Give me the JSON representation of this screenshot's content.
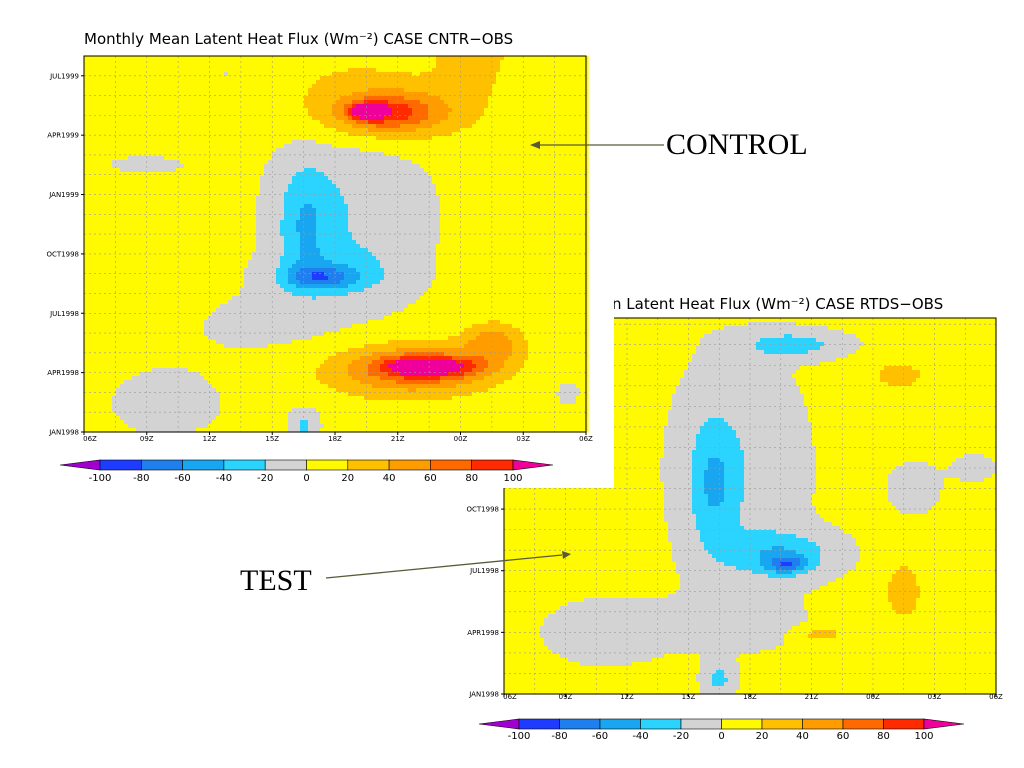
{
  "colors": {
    "frame": "#000000",
    "grid": "#9a9a9a",
    "arrow": "#5a5a3a"
  },
  "scale": {
    "levels": [
      -100,
      -80,
      -60,
      -40,
      -20,
      0,
      20,
      40,
      60,
      80,
      100
    ],
    "colors": [
      "#a000d0",
      "#1e3cff",
      "#1f7fee",
      "#18a6f0",
      "#2ad4ff",
      "#d3d3d3",
      "#fffa00",
      "#ffc000",
      "#ff9c00",
      "#ff6a00",
      "#ff2a00",
      "#f0009a"
    ],
    "tick_labels": [
      "-100",
      "-80",
      "-60",
      "-40",
      "-20",
      "0",
      "20",
      "40",
      "60",
      "80",
      "100"
    ]
  },
  "annotations": {
    "control": "CONTROL",
    "test": "TEST"
  },
  "chart_data": [
    {
      "type": "heatmap",
      "title": "Monthly Mean Latent Heat Flux (Wm⁻²) CASE CNTR−OBS",
      "x_label_values": [
        "06Z",
        "09Z",
        "12Z",
        "15Z",
        "18Z",
        "21Z",
        "00Z",
        "03Z",
        "06Z"
      ],
      "y_label_values": [
        "JAN1998",
        "APR1998",
        "JUL1998",
        "OCT1998",
        "JAN1999",
        "APR1999",
        "JUL1999"
      ],
      "x_hours": [
        0,
        3,
        6,
        9,
        12,
        15,
        18,
        21,
        24
      ],
      "y_months": [
        0,
        3,
        6,
        9,
        12,
        15,
        18
      ],
      "xlim": [
        0,
        24
      ],
      "ylim": [
        0,
        19
      ],
      "grid": true,
      "blobs": [
        {
          "x": 12.5,
          "y": 17.5,
          "rx": 5,
          "ry": 3.2,
          "v": 15
        },
        {
          "x": 18.5,
          "y": 20.0,
          "rx": 2.2,
          "ry": 3.5,
          "v": 35
        },
        {
          "x": 15.0,
          "y": 16.2,
          "rx": 4.8,
          "ry": 2.0,
          "v": 32
        },
        {
          "x": 14.5,
          "y": 16.1,
          "rx": 2.8,
          "ry": 1.1,
          "v": 55
        },
        {
          "x": 13.5,
          "y": 16.2,
          "rx": 1.0,
          "ry": 0.5,
          "v": 82
        },
        {
          "x": 12.8,
          "y": 11.0,
          "rx": 4.0,
          "ry": 5.5,
          "v": -22
        },
        {
          "x": 10.5,
          "y": 10.5,
          "rx": 1.6,
          "ry": 3.8,
          "v": -35
        },
        {
          "x": 12.0,
          "y": 8.0,
          "rx": 3.5,
          "ry": 1.6,
          "v": -20
        },
        {
          "x": 11.3,
          "y": 7.8,
          "rx": 2.2,
          "ry": 0.7,
          "v": -48
        },
        {
          "x": 15.0,
          "y": 3.0,
          "rx": 6.0,
          "ry": 2.2,
          "v": 25
        },
        {
          "x": 16.0,
          "y": 3.2,
          "rx": 4.2,
          "ry": 1.3,
          "v": 52
        },
        {
          "x": 16.5,
          "y": 3.3,
          "rx": 2.5,
          "ry": 0.6,
          "v": 80
        },
        {
          "x": 19.5,
          "y": 4.5,
          "rx": 1.8,
          "ry": 1.3,
          "v": 45
        },
        {
          "x": 4.0,
          "y": 1.5,
          "rx": 3.5,
          "ry": 2.2,
          "v": -10
        },
        {
          "x": 9.0,
          "y": 5.3,
          "rx": 5.0,
          "ry": 2.3,
          "v": -8
        },
        {
          "x": 3.0,
          "y": 13.5,
          "rx": 3.5,
          "ry": 0.8,
          "v": -6
        },
        {
          "x": 7.0,
          "y": 18.0,
          "rx": 1.8,
          "ry": 1.0,
          "v": -6
        },
        {
          "x": 10.5,
          "y": 0.4,
          "rx": 0.8,
          "ry": 1.0,
          "v": -30
        },
        {
          "x": 23.0,
          "y": 2.0,
          "rx": 1.0,
          "ry": 1.0,
          "v": -8
        }
      ]
    },
    {
      "type": "heatmap",
      "title": "n Latent Heat Flux (Wm⁻²) CASE RTDS−OBS",
      "x_label_values": [
        "06Z",
        "09Z",
        "12Z",
        "15Z",
        "18Z",
        "21Z",
        "00Z",
        "03Z",
        "06Z"
      ],
      "y_label_values": [
        "JAN1998",
        "APR1998",
        "JUL1998",
        "OCT1998"
      ],
      "x_hours": [
        0,
        3,
        6,
        9,
        12,
        15,
        18,
        21,
        24
      ],
      "y_months": [
        0,
        3,
        6,
        9
      ],
      "xlim": [
        0,
        24
      ],
      "ylim": [
        0,
        18.3
      ],
      "grid": true,
      "blobs": [
        {
          "x": 11.5,
          "y": 11.0,
          "rx": 3.8,
          "ry": 6.5,
          "v": -18
        },
        {
          "x": 10.2,
          "y": 10.2,
          "rx": 1.5,
          "ry": 4.0,
          "v": -35
        },
        {
          "x": 13.5,
          "y": 6.8,
          "rx": 3.2,
          "ry": 1.4,
          "v": -40
        },
        {
          "x": 13.8,
          "y": 6.3,
          "rx": 1.2,
          "ry": 0.5,
          "v": -52
        },
        {
          "x": 14.0,
          "y": 17.0,
          "rx": 3.0,
          "ry": 0.8,
          "v": -35
        },
        {
          "x": 5.0,
          "y": 3.0,
          "rx": 4.2,
          "ry": 2.2,
          "v": -10
        },
        {
          "x": 11.5,
          "y": 3.5,
          "rx": 4.0,
          "ry": 1.8,
          "v": -10
        },
        {
          "x": 10.5,
          "y": 0.7,
          "rx": 0.9,
          "ry": 1.0,
          "v": -30
        },
        {
          "x": 19.5,
          "y": 5.0,
          "rx": 1.1,
          "ry": 1.8,
          "v": 32
        },
        {
          "x": 19.3,
          "y": 15.5,
          "rx": 1.8,
          "ry": 1.0,
          "v": 25
        },
        {
          "x": 15.5,
          "y": 2.9,
          "rx": 1.4,
          "ry": 0.4,
          "v": 28
        },
        {
          "x": 20.0,
          "y": 10.0,
          "rx": 2.0,
          "ry": 2.0,
          "v": -8
        },
        {
          "x": 2.5,
          "y": 14.0,
          "rx": 2.5,
          "ry": 2.0,
          "v": -8
        },
        {
          "x": 23.0,
          "y": 11.0,
          "rx": 1.5,
          "ry": 1.0,
          "v": -8
        }
      ]
    }
  ]
}
